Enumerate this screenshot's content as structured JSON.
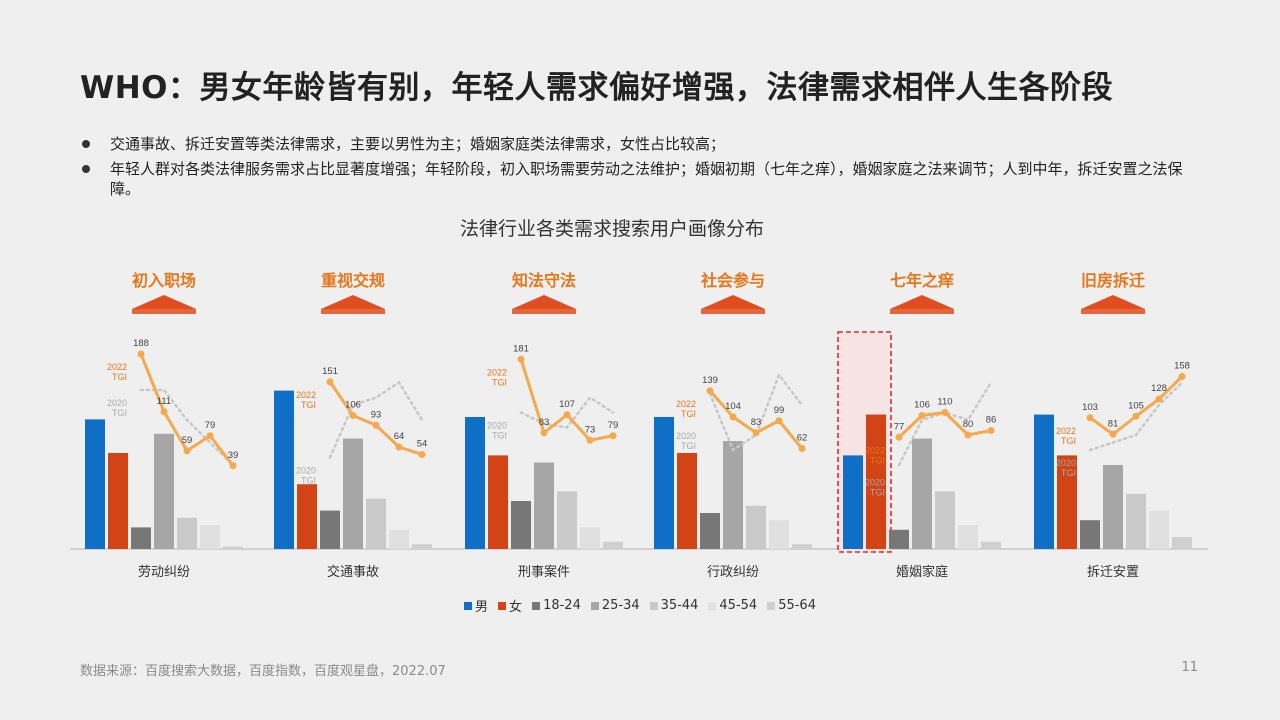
{
  "title": "WHO：男女年龄皆有别，年轻人需求偏好增强，法律需求相伴人生各阶段",
  "bullets": [
    "交通事故、拆迁安置等类法律需求，主要以男性为主；婚姻家庭类法律需求，女性占比较高；",
    "年轻人群对各类法律服务需求占比显著度增强；年轻阶段，初入职场需要劳动之法维护；婚姻初期（七年之痒），婚姻家庭之法来调节；人到中年，拆迁安置之法保障。"
  ],
  "chart_title": "法律行业各类需求搜索用户画像分布",
  "source": "数据来源：百度搜索大数据，百度指数，百度观星盘，2022.07",
  "page_number": "11",
  "colors": {
    "male": "#0f6fc6",
    "female": "#d24316",
    "age_18_24": "#777777",
    "age_25_34": "#a6a6a6",
    "age_35_44": "#c9c9c9",
    "age_45_54": "#e0e0e0",
    "age_55_64": "#cfcfcf",
    "tgi_2022": "#f6a94a",
    "tgi_2020": "#c7c7c7",
    "stage_label": "#e8761a",
    "arrow": "#e24d1f",
    "highlight_border": "#e02a2a",
    "highlight_fill": "#f6e3e3"
  },
  "chart_data": {
    "type": "bar",
    "categories": [
      "劳动纠纷",
      "交通事故",
      "刑事案件",
      "行政纠纷",
      "婚姻家庭",
      "拆迁安置"
    ],
    "stage_labels": [
      "初入职场",
      "重视交规",
      "知法守法",
      "社会参与",
      "七年之痒",
      "旧房拆迁"
    ],
    "highlighted_category": "婚姻家庭",
    "series": [
      {
        "name": "男",
        "values": [
          54,
          66,
          55,
          55,
          39,
          56
        ]
      },
      {
        "name": "女",
        "values": [
          40,
          27,
          39,
          40,
          56,
          39
        ]
      },
      {
        "name": "18-24",
        "values": [
          9,
          16,
          20,
          15,
          8,
          12
        ]
      },
      {
        "name": "25-34",
        "values": [
          48,
          46,
          36,
          45,
          46,
          35
        ]
      },
      {
        "name": "35-44",
        "values": [
          13,
          21,
          24,
          18,
          24,
          23
        ]
      },
      {
        "name": "45-54",
        "values": [
          10,
          8,
          9,
          12,
          10,
          16
        ]
      },
      {
        "name": "55-64",
        "values": [
          1,
          2,
          3,
          2,
          3,
          5
        ]
      }
    ],
    "age_groups": [
      "18-24",
      "25-34",
      "35-44",
      "45-54",
      "55-64"
    ],
    "tgi_2022": [
      [
        188,
        111,
        59,
        79,
        39
      ],
      [
        151,
        106,
        93,
        64,
        54
      ],
      [
        181,
        83,
        107,
        73,
        79
      ],
      [
        139,
        104,
        83,
        99,
        62
      ],
      [
        77,
        106,
        110,
        80,
        86
      ],
      [
        103,
        81,
        105,
        128,
        158
      ]
    ],
    "tgi_2020": [
      [
        140,
        140,
        100,
        70,
        40
      ],
      [
        50,
        120,
        130,
        150,
        100
      ],
      [
        110,
        95,
        90,
        130,
        110
      ],
      [
        135,
        60,
        80,
        160,
        120
      ],
      [
        40,
        100,
        110,
        100,
        150
      ],
      [
        60,
        70,
        80,
        120,
        150
      ]
    ],
    "tgi_2022_label": [
      "2022",
      "TGI"
    ],
    "tgi_2020_label": [
      "2020",
      "TGI"
    ],
    "legend": [
      "男",
      "女",
      "18-24",
      "25-34",
      "35-44",
      "45-54",
      "55-64"
    ]
  }
}
